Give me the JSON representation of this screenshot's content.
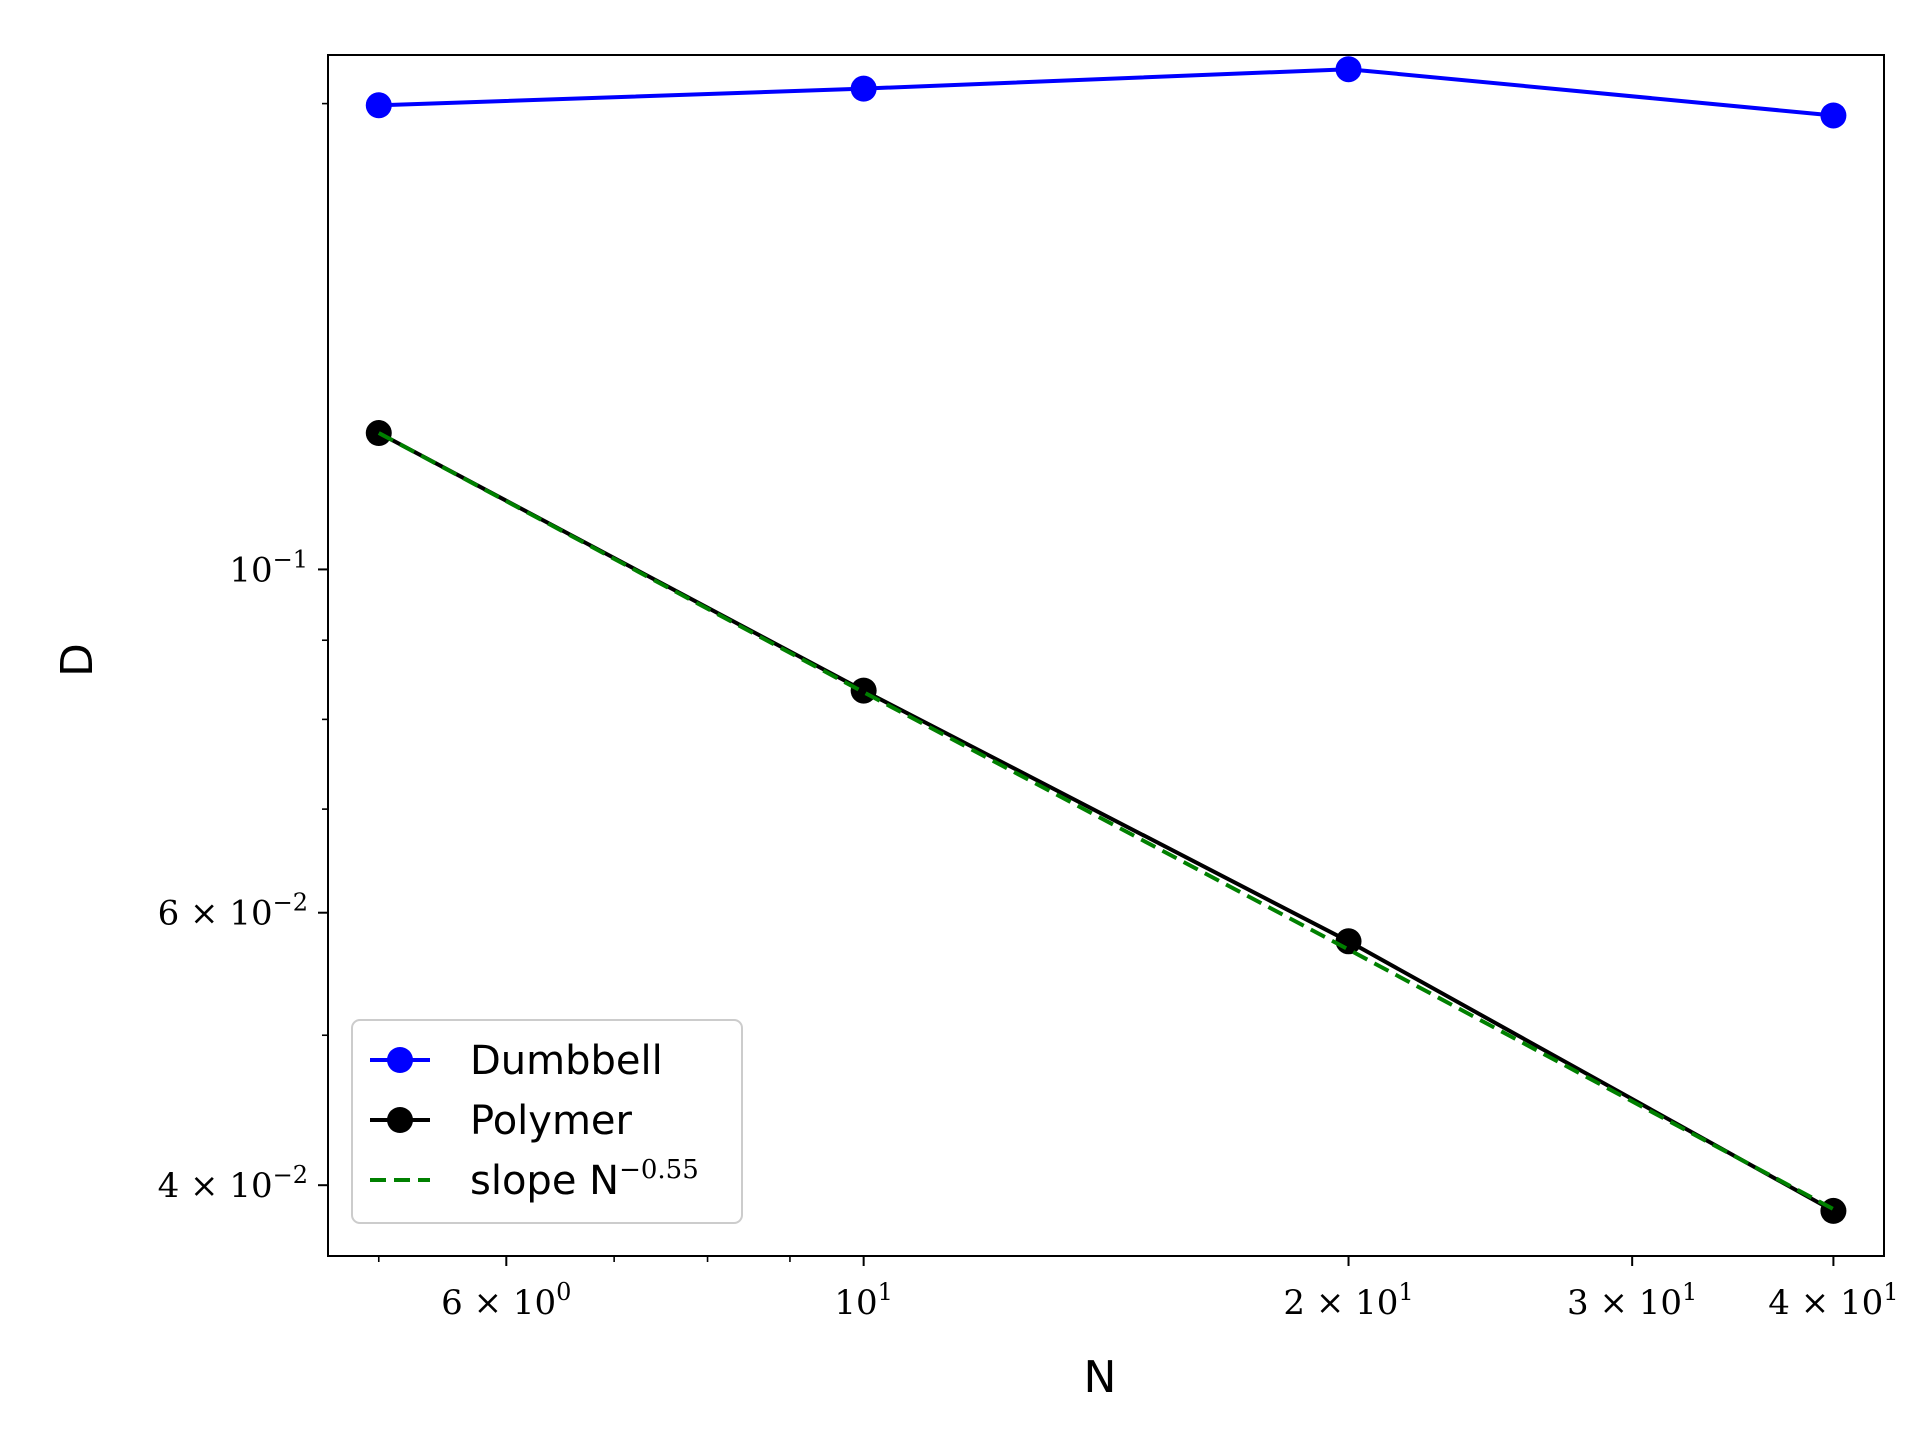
{
  "chart_data": {
    "type": "line",
    "xscale": "log",
    "yscale": "log",
    "xlabel": "N",
    "ylabel": "D",
    "xlim": [
      4.65,
      43.0
    ],
    "ylim": [
      0.036,
      0.215
    ],
    "grid": false,
    "legend_position": "lower-left",
    "x_ticks": [
      {
        "value": 6,
        "mantissa": "6",
        "exponent": "0"
      },
      {
        "value": 10,
        "mantissa": "",
        "exponent": "1"
      },
      {
        "value": 20,
        "mantissa": "2",
        "exponent": "1"
      },
      {
        "value": 30,
        "mantissa": "3",
        "exponent": "1"
      },
      {
        "value": 40,
        "mantissa": "4",
        "exponent": "1"
      }
    ],
    "y_ticks": [
      {
        "value": 0.1,
        "mantissa": "",
        "exponent": "−1"
      },
      {
        "value": 0.06,
        "mantissa": "6",
        "exponent": "−2"
      },
      {
        "value": 0.04,
        "mantissa": "4",
        "exponent": "−2"
      }
    ],
    "series": [
      {
        "name": "Dumbbell",
        "color": "#0000ff",
        "style": "solid",
        "marker": "circle",
        "x": [
          5,
          10,
          20,
          40
        ],
        "y": [
          0.1995,
          0.2045,
          0.2105,
          0.1965
        ]
      },
      {
        "name": "Polymer",
        "color": "#000000",
        "style": "solid",
        "marker": "circle",
        "x": [
          5,
          10,
          20,
          40
        ],
        "y": [
          0.1225,
          0.0835,
          0.0575,
          0.0385
        ]
      },
      {
        "name": "slope N",
        "name_superscript": "−0.55",
        "color": "#008000",
        "style": "dashed",
        "marker": "none",
        "x": [
          5,
          10,
          20,
          40
        ],
        "y": [
          0.1225,
          0.0833,
          0.0568,
          0.0386
        ]
      }
    ]
  }
}
